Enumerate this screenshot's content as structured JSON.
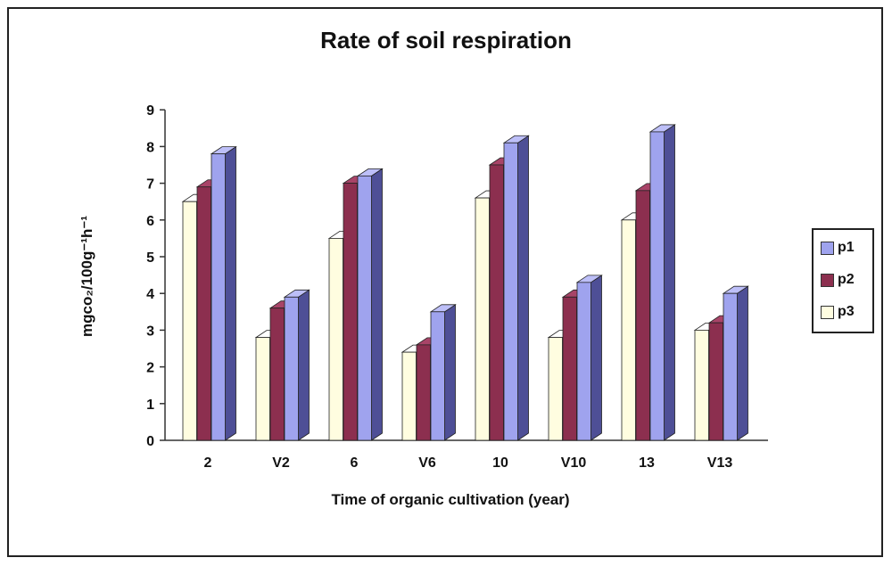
{
  "chart_data": {
    "type": "bar",
    "title": "Rate of soil respiration",
    "xlabel": "Time of organic cultivation (year)",
    "ylabel": "mgco₂/100g⁻¹h⁻¹",
    "categories": [
      "2",
      "V2",
      "6",
      "V6",
      "10",
      "V10",
      "13",
      "V13"
    ],
    "ylim": [
      0,
      9
    ],
    "yticks": [
      "0",
      "1",
      "2",
      "3",
      "4",
      "5",
      "6",
      "7",
      "8",
      "9"
    ],
    "series": [
      {
        "name": "p3",
        "values": [
          6.5,
          2.8,
          5.5,
          2.4,
          6.6,
          2.8,
          6.0,
          3.0
        ]
      },
      {
        "name": "p2",
        "values": [
          6.9,
          3.6,
          7.0,
          2.6,
          7.5,
          3.9,
          6.8,
          3.2
        ]
      },
      {
        "name": "p1",
        "values": [
          7.8,
          3.9,
          7.2,
          3.5,
          8.1,
          4.3,
          8.4,
          4.0
        ]
      }
    ],
    "legend": {
      "position": "right",
      "order": [
        "p1",
        "p2",
        "p3"
      ]
    },
    "grid": false,
    "style": "3d-clustered-bar",
    "colors": {
      "p3": {
        "front": "#fffde0",
        "side": "#d8d6b8",
        "top": "#ffffff"
      },
      "p2": {
        "front": "#8c2f4f",
        "side": "#6a1e38",
        "top": "#a84468"
      },
      "p1": {
        "front": "#9fa3ee",
        "side": "#4e4f96",
        "top": "#bdbff8"
      }
    }
  }
}
